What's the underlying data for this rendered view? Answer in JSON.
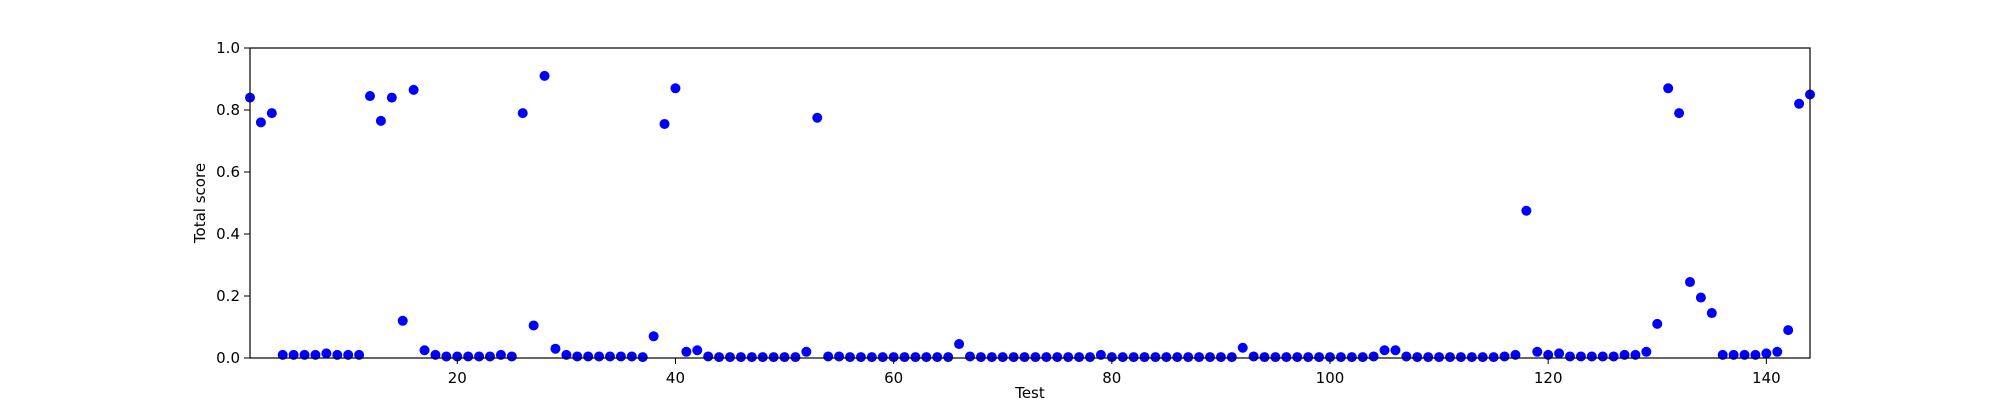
{
  "chart_data": {
    "type": "scatter",
    "xlabel": "Test",
    "ylabel": "Total score",
    "xlim": [
      1,
      144
    ],
    "ylim": [
      0.0,
      1.0
    ],
    "xticks": [
      20,
      40,
      60,
      80,
      100,
      120,
      140
    ],
    "yticks": [
      0.0,
      0.2,
      0.4,
      0.6,
      0.8,
      1.0
    ],
    "ytick_labels": [
      "0.0",
      "0.2",
      "0.4",
      "0.6",
      "0.8",
      "1.0"
    ],
    "grid": false,
    "marker_color": "#0000ff",
    "x": [
      1,
      2,
      3,
      4,
      5,
      6,
      7,
      8,
      9,
      10,
      11,
      12,
      13,
      14,
      15,
      16,
      17,
      18,
      19,
      20,
      21,
      22,
      23,
      24,
      25,
      26,
      27,
      28,
      29,
      30,
      31,
      32,
      33,
      34,
      35,
      36,
      37,
      38,
      39,
      40,
      41,
      42,
      43,
      44,
      45,
      46,
      47,
      48,
      49,
      50,
      51,
      52,
      53,
      54,
      55,
      56,
      57,
      58,
      59,
      60,
      61,
      62,
      63,
      64,
      65,
      66,
      67,
      68,
      69,
      70,
      71,
      72,
      73,
      74,
      75,
      76,
      77,
      78,
      79,
      80,
      81,
      82,
      83,
      84,
      85,
      86,
      87,
      88,
      89,
      90,
      91,
      92,
      93,
      94,
      95,
      96,
      97,
      98,
      99,
      100,
      101,
      102,
      103,
      104,
      105,
      106,
      107,
      108,
      109,
      110,
      111,
      112,
      113,
      114,
      115,
      116,
      117,
      118,
      119,
      120,
      121,
      122,
      123,
      124,
      125,
      126,
      127,
      128,
      129,
      130,
      131,
      132,
      133,
      134,
      135,
      136,
      137,
      138,
      139,
      140,
      141,
      142,
      143,
      144
    ],
    "y": [
      0.84,
      0.76,
      0.79,
      0.01,
      0.01,
      0.01,
      0.01,
      0.015,
      0.01,
      0.01,
      0.01,
      0.845,
      0.765,
      0.84,
      0.12,
      0.865,
      0.025,
      0.01,
      0.005,
      0.005,
      0.005,
      0.005,
      0.005,
      0.01,
      0.005,
      0.79,
      0.105,
      0.91,
      0.03,
      0.01,
      0.005,
      0.005,
      0.005,
      0.005,
      0.005,
      0.005,
      0.003,
      0.07,
      0.755,
      0.87,
      0.02,
      0.025,
      0.005,
      0.003,
      0.003,
      0.003,
      0.003,
      0.003,
      0.003,
      0.003,
      0.003,
      0.02,
      0.775,
      0.005,
      0.005,
      0.003,
      0.003,
      0.003,
      0.003,
      0.003,
      0.003,
      0.003,
      0.003,
      0.003,
      0.003,
      0.045,
      0.005,
      0.003,
      0.003,
      0.003,
      0.003,
      0.003,
      0.003,
      0.003,
      0.003,
      0.003,
      0.003,
      0.003,
      0.01,
      0.003,
      0.003,
      0.003,
      0.003,
      0.003,
      0.003,
      0.003,
      0.003,
      0.003,
      0.003,
      0.003,
      0.003,
      0.033,
      0.005,
      0.003,
      0.003,
      0.003,
      0.003,
      0.003,
      0.003,
      0.003,
      0.003,
      0.003,
      0.003,
      0.005,
      0.025,
      0.025,
      0.005,
      0.003,
      0.003,
      0.003,
      0.003,
      0.003,
      0.003,
      0.003,
      0.003,
      0.005,
      0.01,
      0.475,
      0.02,
      0.01,
      0.015,
      0.005,
      0.005,
      0.005,
      0.005,
      0.005,
      0.01,
      0.01,
      0.02,
      0.11,
      0.87,
      0.79,
      0.245,
      0.195,
      0.145,
      0.01,
      0.01,
      0.01,
      0.01,
      0.015,
      0.02,
      0.09,
      0.82,
      0.85
    ]
  }
}
